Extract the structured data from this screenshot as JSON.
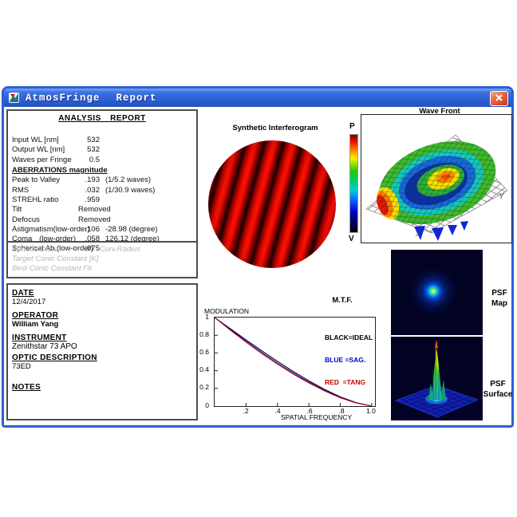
{
  "titlebar": {
    "app": "AtmosFringe",
    "menu": "Report"
  },
  "report": {
    "header": "ANALYSIS REPORT",
    "aberrations_header": "ABERRATIONS magnitude",
    "rows": [
      {
        "label": "Input WL [nm]",
        "mid": "",
        "value": "532",
        "extra": ""
      },
      {
        "label": "Output WL [nm]",
        "mid": "",
        "value": "532",
        "extra": ""
      },
      {
        "label": "Waves per Fringe",
        "mid": "",
        "value": "0.5",
        "extra": ""
      },
      {
        "label": "Peak to Valley",
        "mid": "",
        "value": ".193",
        "extra": "(1/5.2 waves)"
      },
      {
        "label": "RMS",
        "mid": "",
        "value": ".032",
        "extra": "(1/30.9 waves)"
      },
      {
        "label": "STREHL ratio",
        "mid": "",
        "value": ".959",
        "extra": ""
      },
      {
        "label": "Tilt",
        "mid": "",
        "value": "Removed",
        "extra": ""
      },
      {
        "label": "Defocus",
        "mid": "",
        "value": "Removed",
        "extra": ""
      },
      {
        "label": "Astigmatism",
        "mid": "(low-order)",
        "value": ".106",
        "extra": "-28.98  (degree)"
      },
      {
        "label": "Coma",
        "mid": "(low-order)",
        "value": ".058",
        "extra": "126.12  (degree)"
      },
      {
        "label": "Spherical Ab.(low-order)",
        "mid": "",
        "value": ".075",
        "extra": ""
      }
    ],
    "disabled": {
      "surface_diam": "Surface Diam",
      "curv_radius": "Curv.Radius",
      "target_conic": "Target Conic Constant [K]",
      "best_conic": "Best Conic Constant Fit"
    }
  },
  "info": {
    "date_label": "DATE",
    "date": "12/4/2017",
    "operator_label": "OPERATOR",
    "operator": "William Yang",
    "instrument_label": "INSTRUMENT",
    "instrument": "Zenithstar 73 APO",
    "optic_label": "OPTIC DESCRIPTION",
    "optic": "73ED",
    "notes_label": "NOTES",
    "notes": ""
  },
  "interferogram": {
    "title": "Synthetic Interferogram"
  },
  "colorbar": {
    "top": "P",
    "bottom": "V"
  },
  "wavefront": {
    "title": "Wave Front",
    "x_label": "X",
    "y_label": "Y"
  },
  "psf_map": {
    "line1": "PSF",
    "line2": "Map"
  },
  "psf_surface": {
    "line1": "PSF",
    "line2": "Surface"
  },
  "chart_data": {
    "type": "line",
    "title": "M.T.F.",
    "ylabel": "MODULATION",
    "xlabel": "SPATIAL FREQUENCY",
    "xlim": [
      0,
      1
    ],
    "ylim": [
      0,
      1
    ],
    "grid": false,
    "legend_position": "top-right",
    "xtick_labels": [
      ".2",
      ".4",
      ".6",
      ".8",
      "1.0"
    ],
    "ytick_labels": [
      "1",
      "0.8",
      "0.6",
      "0.4",
      "0.2",
      "0"
    ],
    "x": [
      0,
      0.1,
      0.2,
      0.3,
      0.4,
      0.5,
      0.6,
      0.7,
      0.8,
      0.9,
      1.0
    ],
    "series": [
      {
        "name": "IDEAL",
        "color": "#000000",
        "values": [
          1,
          0.873,
          0.747,
          0.624,
          0.505,
          0.391,
          0.285,
          0.188,
          0.104,
          0.04,
          0
        ]
      },
      {
        "name": "SAG",
        "color": "#0000cc",
        "values": [
          1,
          0.865,
          0.733,
          0.606,
          0.486,
          0.373,
          0.27,
          0.177,
          0.098,
          0.037,
          0
        ]
      },
      {
        "name": "TANG",
        "color": "#cc0000",
        "values": [
          1,
          0.858,
          0.722,
          0.593,
          0.473,
          0.361,
          0.26,
          0.17,
          0.093,
          0.035,
          0
        ]
      }
    ],
    "legend": [
      {
        "label": "BLACK=IDEAL",
        "color": "#000000"
      },
      {
        "label": "BLUE =SAG.",
        "color": "#0000cc"
      },
      {
        "label": "RED  =TANG",
        "color": "#cc0000"
      }
    ]
  }
}
